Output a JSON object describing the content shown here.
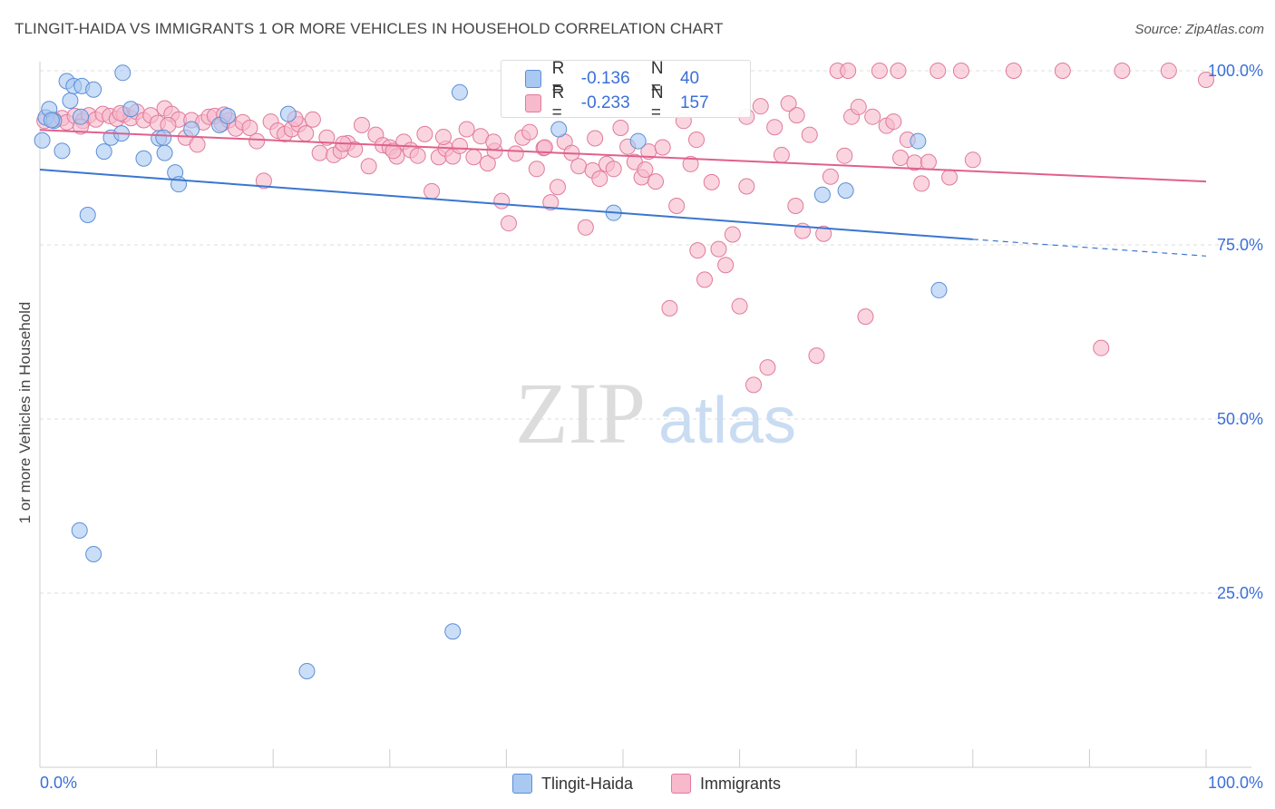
{
  "header": {
    "title": "TLINGIT-HAIDA VS IMMIGRANTS 1 OR MORE VEHICLES IN HOUSEHOLD CORRELATION CHART",
    "source": "Source: ZipAtlas.com"
  },
  "watermark": {
    "zip": "ZIP",
    "atlas": "atlas"
  },
  "legend": {
    "rows": [
      {
        "r_label": "R =",
        "r_value": "-0.136",
        "n_label": "N =",
        "n_value": "40",
        "color": "#a9c8f2",
        "stroke": "#5d8fd6"
      },
      {
        "r_label": "R =",
        "r_value": "-0.233",
        "n_label": "N =",
        "n_value": "157",
        "color": "#f7b9cb",
        "stroke": "#e07a9c"
      }
    ]
  },
  "bottom_legend": [
    {
      "label": "Tlingit-Haida",
      "color": "#a9c8f2",
      "stroke": "#5d8fd6"
    },
    {
      "label": "Immigrants",
      "color": "#f7b9cb",
      "stroke": "#e07a9c"
    }
  ],
  "chart_data": {
    "type": "scatter",
    "title": "TLINGIT-HAIDA VS IMMIGRANTS 1 OR MORE VEHICLES IN HOUSEHOLD CORRELATION CHART",
    "xlabel": "",
    "ylabel": "1 or more Vehicles in Household",
    "xlim": [
      0,
      100
    ],
    "ylim": [
      0,
      100
    ],
    "x_tick_labels": [
      "0.0%",
      "100.0%"
    ],
    "y_tick_labels": [
      "25.0%",
      "50.0%",
      "75.0%",
      "100.0%"
    ],
    "y_ticks": [
      25,
      50,
      75,
      100
    ],
    "grid": true,
    "legend_position": "top-center",
    "series": [
      {
        "name": "Tlingit-Haida",
        "color": "#a9c8f2",
        "stroke": "#5d8fd6",
        "line_color": "#3a76d0",
        "trend": {
          "x0": 0,
          "y0": 85.8,
          "x1": 80,
          "y1": 75.8,
          "dash_to_x": 100,
          "dash_y": 73.4
        },
        "points": [
          [
            0.2,
            90.0
          ],
          [
            0.5,
            93.3
          ],
          [
            0.8,
            94.5
          ],
          [
            1.2,
            92.8
          ],
          [
            1.9,
            88.5
          ],
          [
            2.3,
            98.5
          ],
          [
            2.6,
            95.7
          ],
          [
            2.9,
            97.8
          ],
          [
            3.5,
            93.4
          ],
          [
            3.6,
            97.8
          ],
          [
            4.1,
            79.3
          ],
          [
            4.6,
            97.3
          ],
          [
            5.5,
            88.4
          ],
          [
            6.1,
            90.4
          ],
          [
            7.0,
            91.0
          ],
          [
            7.1,
            99.7
          ],
          [
            7.8,
            94.5
          ],
          [
            8.9,
            87.4
          ],
          [
            10.2,
            90.3
          ],
          [
            10.6,
            90.4
          ],
          [
            10.7,
            88.2
          ],
          [
            11.6,
            85.4
          ],
          [
            11.9,
            83.7
          ],
          [
            15.4,
            92.2
          ],
          [
            16.1,
            93.5
          ],
          [
            21.3,
            93.8
          ],
          [
            3.4,
            34.0
          ],
          [
            4.6,
            30.6
          ],
          [
            22.9,
            13.8
          ],
          [
            35.4,
            19.5
          ],
          [
            36.0,
            96.9
          ],
          [
            44.5,
            91.6
          ],
          [
            49.2,
            79.6
          ],
          [
            51.3,
            89.9
          ],
          [
            67.1,
            82.2
          ],
          [
            69.1,
            82.8
          ],
          [
            75.3,
            89.9
          ],
          [
            77.1,
            68.5
          ],
          [
            1.0,
            92.9
          ],
          [
            13.0,
            91.6
          ]
        ]
      },
      {
        "name": "Immigrants",
        "color": "#f7b9cb",
        "stroke": "#e07a9c",
        "line_color": "#e0608c",
        "trend": {
          "x0": 0,
          "y0": 91.5,
          "x1": 100,
          "y1": 84.1
        },
        "points": [
          [
            0.4,
            92.8
          ],
          [
            1.2,
            93.0
          ],
          [
            1.9,
            93.2
          ],
          [
            2.3,
            92.6
          ],
          [
            3.0,
            93.5
          ],
          [
            3.7,
            92.8
          ],
          [
            4.2,
            93.6
          ],
          [
            4.8,
            93.0
          ],
          [
            5.4,
            93.8
          ],
          [
            6.0,
            93.5
          ],
          [
            6.6,
            93.1
          ],
          [
            7.2,
            93.7
          ],
          [
            7.8,
            93.2
          ],
          [
            8.3,
            94.1
          ],
          [
            8.9,
            92.9
          ],
          [
            9.5,
            93.6
          ],
          [
            10.1,
            92.5
          ],
          [
            10.7,
            94.6
          ],
          [
            11.3,
            93.8
          ],
          [
            11.9,
            93.0
          ],
          [
            12.5,
            90.4
          ],
          [
            13.0,
            92.9
          ],
          [
            13.5,
            89.4
          ],
          [
            14.0,
            92.6
          ],
          [
            14.5,
            93.4
          ],
          [
            15.0,
            93.5
          ],
          [
            15.6,
            92.4
          ],
          [
            16.2,
            92.9
          ],
          [
            16.8,
            91.7
          ],
          [
            17.4,
            92.6
          ],
          [
            18.0,
            91.8
          ],
          [
            18.6,
            89.9
          ],
          [
            19.2,
            84.2
          ],
          [
            19.8,
            92.7
          ],
          [
            20.4,
            91.4
          ],
          [
            21.0,
            90.9
          ],
          [
            21.6,
            91.6
          ],
          [
            22.2,
            92.3
          ],
          [
            22.8,
            91.0
          ],
          [
            23.4,
            93.0
          ],
          [
            24.0,
            88.2
          ],
          [
            24.6,
            90.4
          ],
          [
            25.2,
            87.9
          ],
          [
            25.8,
            88.5
          ],
          [
            26.4,
            89.6
          ],
          [
            27.0,
            88.7
          ],
          [
            27.6,
            92.2
          ],
          [
            28.2,
            86.3
          ],
          [
            28.8,
            90.8
          ],
          [
            29.4,
            89.3
          ],
          [
            30.0,
            89.0
          ],
          [
            30.6,
            87.7
          ],
          [
            31.2,
            89.8
          ],
          [
            31.8,
            88.6
          ],
          [
            32.4,
            87.8
          ],
          [
            33.0,
            90.9
          ],
          [
            33.6,
            82.7
          ],
          [
            34.2,
            87.6
          ],
          [
            34.8,
            88.8
          ],
          [
            35.4,
            87.7
          ],
          [
            36.0,
            89.2
          ],
          [
            36.6,
            91.6
          ],
          [
            37.2,
            87.6
          ],
          [
            37.8,
            90.6
          ],
          [
            38.4,
            86.7
          ],
          [
            39.0,
            88.5
          ],
          [
            39.6,
            81.3
          ],
          [
            40.2,
            78.1
          ],
          [
            40.8,
            88.1
          ],
          [
            41.4,
            90.4
          ],
          [
            42.0,
            91.2
          ],
          [
            42.6,
            85.9
          ],
          [
            43.2,
            88.9
          ],
          [
            43.8,
            81.1
          ],
          [
            44.4,
            83.3
          ],
          [
            45.0,
            89.8
          ],
          [
            45.6,
            88.2
          ],
          [
            46.2,
            86.3
          ],
          [
            46.8,
            77.5
          ],
          [
            47.4,
            85.7
          ],
          [
            48.0,
            84.5
          ],
          [
            48.6,
            86.6
          ],
          [
            49.2,
            85.9
          ],
          [
            49.8,
            91.8
          ],
          [
            50.4,
            89.1
          ],
          [
            51.0,
            86.9
          ],
          [
            51.6,
            84.7
          ],
          [
            52.2,
            88.4
          ],
          [
            52.8,
            84.1
          ],
          [
            53.4,
            89.0
          ],
          [
            54.0,
            65.9
          ],
          [
            54.6,
            80.6
          ],
          [
            55.2,
            92.8
          ],
          [
            55.8,
            86.6
          ],
          [
            56.4,
            74.2
          ],
          [
            57.0,
            70.0
          ],
          [
            57.6,
            84.0
          ],
          [
            58.2,
            74.4
          ],
          [
            58.8,
            72.1
          ],
          [
            59.4,
            76.5
          ],
          [
            60.0,
            66.2
          ],
          [
            60.6,
            83.4
          ],
          [
            61.2,
            54.9
          ],
          [
            61.8,
            94.9
          ],
          [
            62.4,
            57.4
          ],
          [
            63.0,
            91.9
          ],
          [
            63.6,
            87.9
          ],
          [
            64.2,
            95.3
          ],
          [
            64.8,
            80.6
          ],
          [
            65.4,
            77.0
          ],
          [
            66.0,
            90.8
          ],
          [
            66.6,
            59.1
          ],
          [
            67.2,
            76.6
          ],
          [
            67.8,
            84.8
          ],
          [
            68.4,
            100.0
          ],
          [
            69.0,
            87.8
          ],
          [
            69.6,
            93.4
          ],
          [
            70.2,
            94.8
          ],
          [
            70.8,
            64.7
          ],
          [
            71.4,
            93.4
          ],
          [
            72.0,
            100.0
          ],
          [
            72.6,
            92.1
          ],
          [
            73.2,
            92.7
          ],
          [
            73.8,
            87.5
          ],
          [
            74.4,
            90.1
          ],
          [
            75.0,
            86.8
          ],
          [
            75.6,
            83.8
          ],
          [
            76.2,
            86.9
          ],
          [
            77.0,
            100.0
          ],
          [
            78.0,
            84.7
          ],
          [
            79.0,
            100.0
          ],
          [
            80.0,
            87.2
          ],
          [
            83.5,
            100.0
          ],
          [
            87.7,
            100.0
          ],
          [
            91.0,
            60.2
          ],
          [
            92.8,
            100.0
          ],
          [
            96.8,
            100.0
          ],
          [
            100.0,
            98.7
          ],
          [
            3.5,
            92.0
          ],
          [
            6.9,
            93.9
          ],
          [
            11.0,
            92.2
          ],
          [
            15.8,
            93.7
          ],
          [
            21.9,
            93.1
          ],
          [
            26.0,
            89.5
          ],
          [
            30.3,
            88.5
          ],
          [
            34.6,
            90.5
          ],
          [
            38.9,
            89.8
          ],
          [
            43.3,
            89.0
          ],
          [
            47.6,
            90.3
          ],
          [
            51.9,
            85.8
          ],
          [
            56.3,
            90.1
          ],
          [
            60.6,
            93.4
          ],
          [
            64.9,
            93.6
          ],
          [
            69.3,
            100.0
          ],
          [
            73.6,
            100.0
          ]
        ]
      }
    ]
  }
}
